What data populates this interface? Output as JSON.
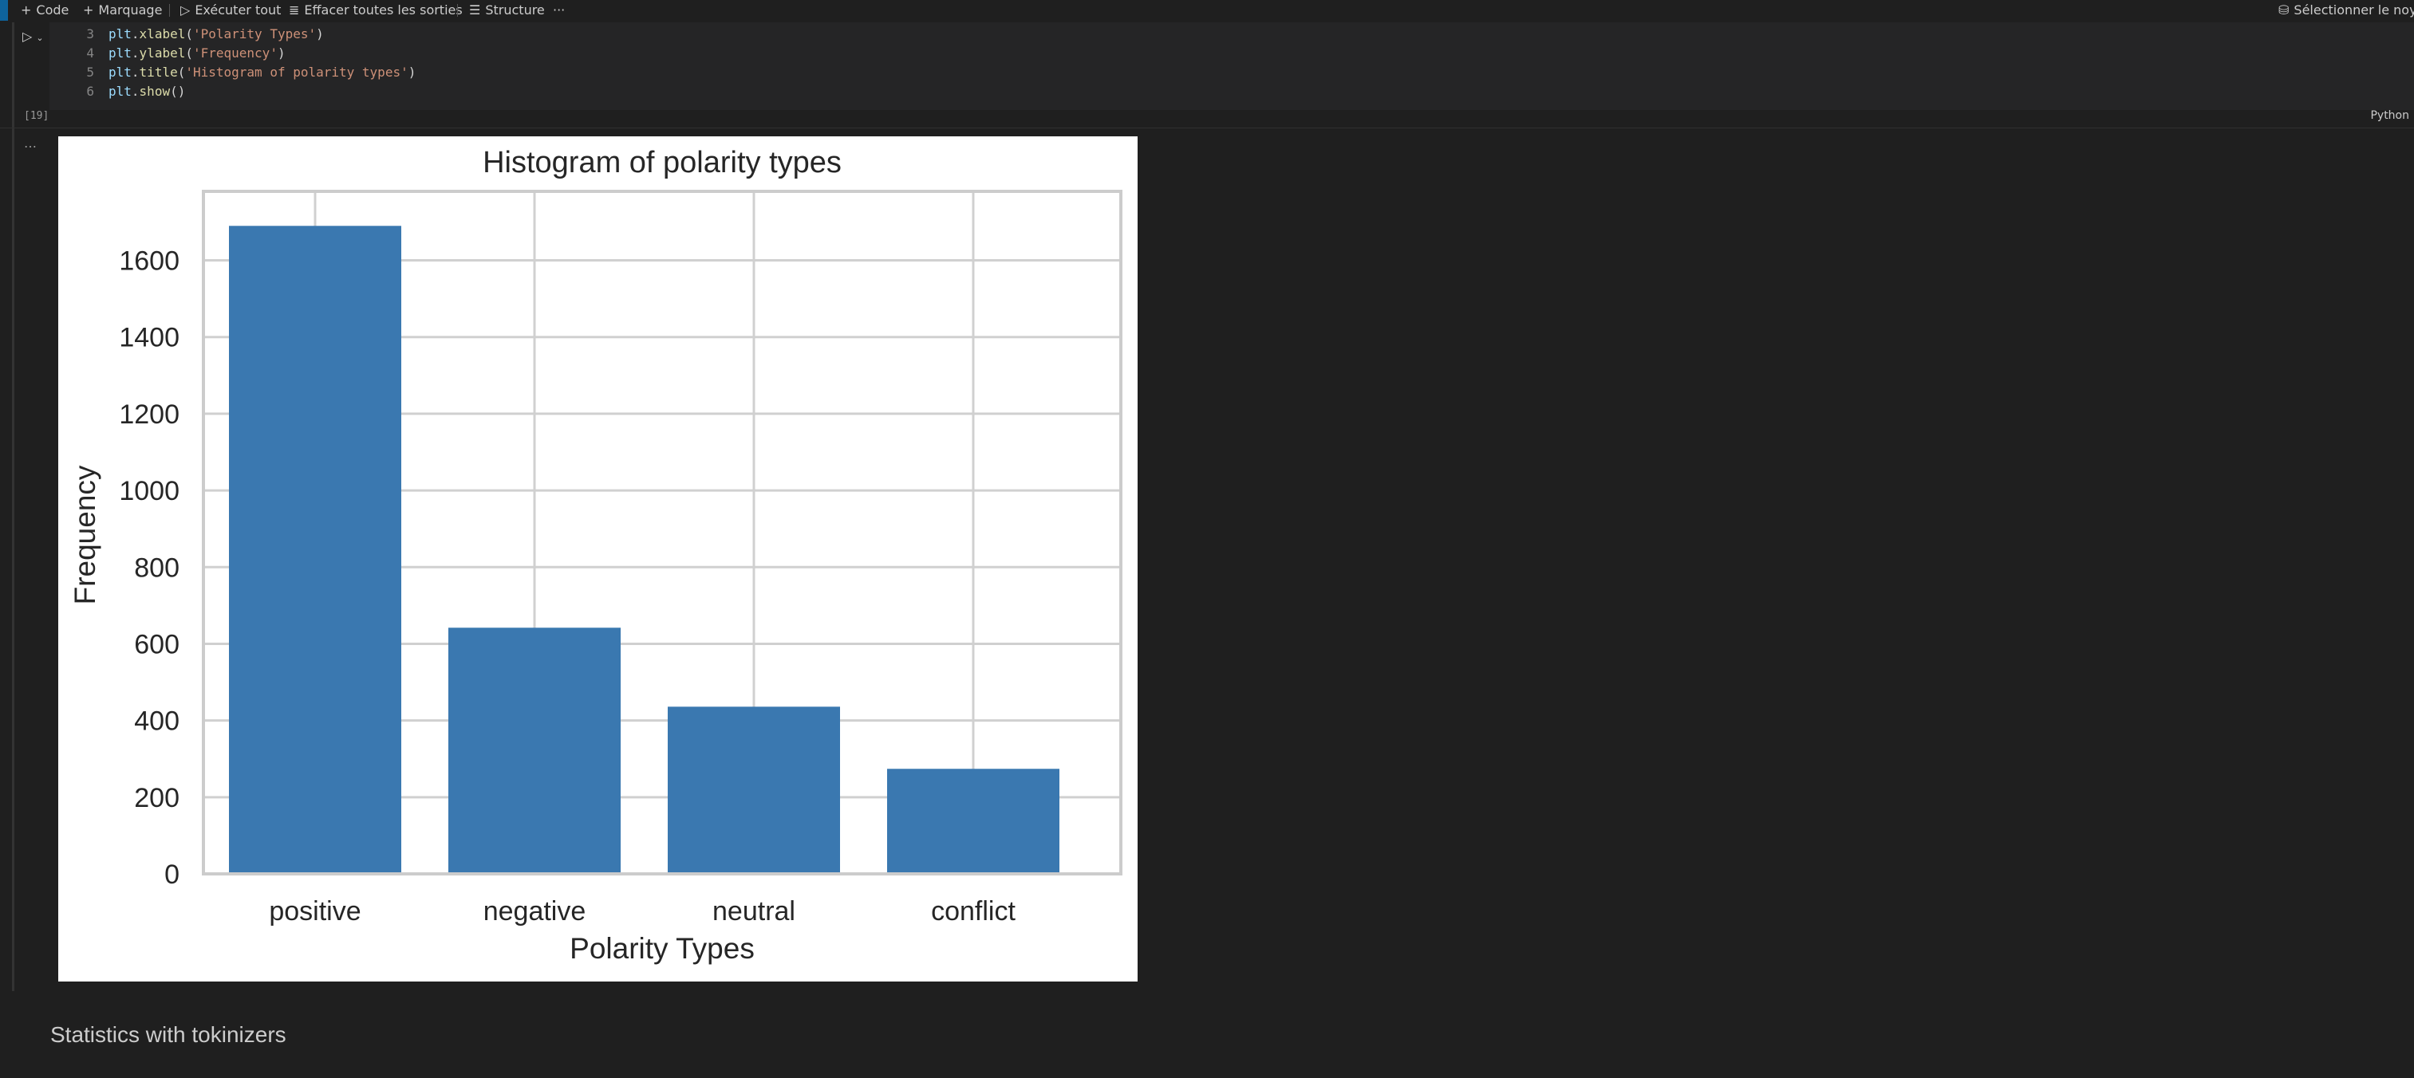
{
  "toolbar": {
    "code": "Code",
    "markdown": "Marquage",
    "run_all": "Exécuter tout",
    "clear_outputs": "Effacer toutes les sorties",
    "outline": "Structure",
    "more": "···",
    "kernel": "Sélectionner le noyau"
  },
  "cell": {
    "lines": [
      {
        "num": "3",
        "obj": "plt",
        "fn": "xlabel",
        "arg": "'Polarity Types'"
      },
      {
        "num": "4",
        "obj": "plt",
        "fn": "ylabel",
        "arg": "'Frequency'"
      },
      {
        "num": "5",
        "obj": "plt",
        "fn": "title",
        "arg": "'Histogram of polarity types'"
      },
      {
        "num": "6",
        "obj": "plt",
        "fn": "show",
        "arg": ""
      }
    ],
    "execution_count": "[19]",
    "language": "Python"
  },
  "markdown_cell": {
    "text": "Statistics with tokinizers"
  },
  "chart_data": {
    "type": "bar",
    "title": "Histogram of polarity types",
    "xlabel": "Polarity Types",
    "ylabel": "Frequency",
    "categories": [
      "positive",
      "negative",
      "neutral",
      "conflict"
    ],
    "values": [
      1690,
      642,
      436,
      274
    ],
    "ylim": [
      0,
      1780
    ],
    "yticks": [
      0,
      200,
      400,
      600,
      800,
      1000,
      1200,
      1400,
      1600
    ],
    "grid": true,
    "bar_color": "#3a78b0"
  }
}
